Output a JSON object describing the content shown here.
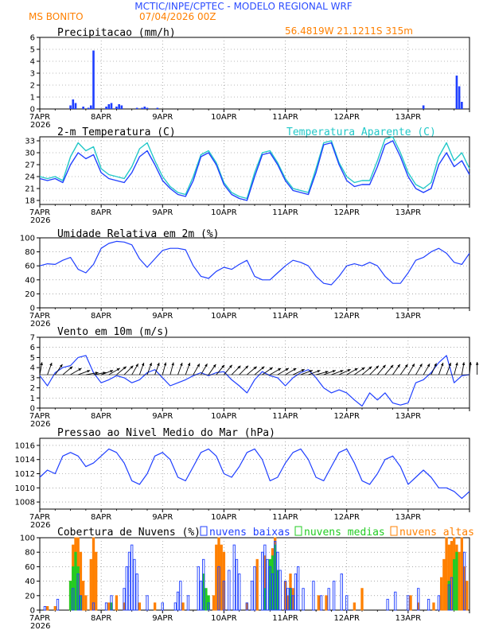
{
  "header": {
    "title": "MCTIC/INPE/CPTEC - MODELO REGIONAL WRF",
    "location": "MS BONITO",
    "run": "07/04/2026 00Z",
    "coords": "56.4819W 21.1211S 315m"
  },
  "colors": {
    "title_blue": "#2b4cff",
    "orange": "#ff8000",
    "blue": "#1f3fff",
    "cyan": "#22c8c8",
    "green": "#22cc22",
    "black": "#000000"
  },
  "x_axis": {
    "ticks": [
      "7APR",
      "8APR",
      "9APR",
      "10APR",
      "11APR",
      "12APR",
      "13APR"
    ],
    "year": "2026"
  },
  "chart_data": [
    {
      "type": "bar",
      "title": "Precipitacao (mm/h)",
      "ylim": [
        0,
        6
      ],
      "yticks": [
        0,
        1,
        2,
        3,
        4,
        5,
        6
      ],
      "x_unit": "hours since 07/04/2026 00Z",
      "series": [
        {
          "x": [
            12,
            13,
            14,
            17,
            19,
            20,
            21,
            26,
            27,
            28,
            30,
            31,
            32,
            38,
            40,
            41,
            42,
            46,
            150,
            163,
            164,
            165
          ],
          "values": [
            0.3,
            0.8,
            0.5,
            0.2,
            0.1,
            0.3,
            4.9,
            0.2,
            0.4,
            0.5,
            0.2,
            0.4,
            0.3,
            0.1,
            0.1,
            0.2,
            0.1,
            0.1,
            0.3,
            2.8,
            1.9,
            0.6
          ]
        }
      ]
    },
    {
      "type": "line",
      "title": "2-m Temperatura (C)",
      "ylim": [
        17,
        34
      ],
      "yticks": [
        18,
        21,
        24,
        27,
        30,
        33
      ],
      "x_unit": "hours since 07/04/2026 00Z",
      "series": [
        {
          "name": "2-m Temperatura (C)",
          "x": [
            0,
            3,
            6,
            9,
            12,
            15,
            18,
            21,
            24,
            27,
            30,
            33,
            36,
            39,
            42,
            45,
            48,
            51,
            54,
            57,
            60,
            63,
            66,
            69,
            72,
            75,
            78,
            81,
            84,
            87,
            90,
            93,
            96,
            99,
            102,
            105,
            108,
            111,
            114,
            117,
            120,
            123,
            126,
            129,
            132,
            135,
            138,
            141,
            144,
            147,
            150,
            153,
            156,
            159,
            162,
            165,
            168
          ],
          "values": [
            23.5,
            23,
            23.5,
            22.5,
            27,
            30,
            28.5,
            29.5,
            25,
            23.5,
            23,
            22.5,
            25,
            29,
            30.5,
            27,
            23,
            21,
            19.5,
            19,
            23,
            29,
            30,
            27,
            22,
            19.5,
            18.5,
            18,
            24,
            29.5,
            30,
            27,
            23,
            20.5,
            20,
            19.5,
            25,
            32,
            32.5,
            27,
            23,
            21.5,
            22,
            22,
            26.5,
            32,
            33,
            29,
            24,
            21,
            20,
            21,
            27,
            30,
            26.5,
            28,
            24.5
          ]
        },
        {
          "name": "Temperatura Aparente (C)",
          "x": [
            0,
            3,
            6,
            9,
            12,
            15,
            18,
            21,
            24,
            27,
            30,
            33,
            36,
            39,
            42,
            45,
            48,
            51,
            54,
            57,
            60,
            63,
            66,
            69,
            72,
            75,
            78,
            81,
            84,
            87,
            90,
            93,
            96,
            99,
            102,
            105,
            108,
            111,
            114,
            117,
            120,
            123,
            126,
            129,
            132,
            135,
            138,
            141,
            144,
            147,
            150,
            153,
            156,
            159,
            162,
            165,
            168
          ],
          "values": [
            24,
            23.5,
            24,
            23,
            29,
            32.5,
            30.5,
            31.5,
            26,
            24.5,
            24,
            23.5,
            26.5,
            31,
            32.5,
            28,
            24,
            21.5,
            20,
            19.5,
            24,
            29.5,
            30.5,
            27.5,
            22.5,
            20,
            19,
            18.5,
            25,
            30,
            30.5,
            27.5,
            23.5,
            21,
            20.5,
            20,
            26,
            32.5,
            33,
            27.5,
            24,
            22.5,
            23,
            23,
            28,
            33.5,
            34,
            30,
            25,
            22,
            21,
            22.5,
            29,
            32.5,
            28,
            30,
            26
          ]
        }
      ]
    },
    {
      "type": "line",
      "title": "Umidade Relativa em 2m (%)",
      "ylim": [
        0,
        100
      ],
      "yticks": [
        0,
        20,
        40,
        60,
        80,
        100
      ],
      "x_unit": "hours since 07/04/2026 00Z",
      "series": [
        {
          "x": [
            0,
            3,
            6,
            9,
            12,
            15,
            18,
            21,
            24,
            27,
            30,
            33,
            36,
            39,
            42,
            45,
            48,
            51,
            54,
            57,
            60,
            63,
            66,
            69,
            72,
            75,
            78,
            81,
            84,
            87,
            90,
            93,
            96,
            99,
            102,
            105,
            108,
            111,
            114,
            117,
            120,
            123,
            126,
            129,
            132,
            135,
            138,
            141,
            144,
            147,
            150,
            153,
            156,
            159,
            162,
            165,
            168
          ],
          "values": [
            60,
            63,
            62,
            68,
            72,
            55,
            50,
            62,
            85,
            92,
            95,
            94,
            90,
            70,
            58,
            70,
            82,
            85,
            85,
            83,
            60,
            45,
            42,
            52,
            58,
            55,
            62,
            68,
            45,
            40,
            40,
            50,
            60,
            68,
            65,
            60,
            45,
            35,
            33,
            45,
            60,
            63,
            60,
            65,
            60,
            45,
            35,
            35,
            50,
            68,
            72,
            80,
            85,
            78,
            65,
            62,
            78
          ]
        }
      ]
    },
    {
      "type": "line",
      "title": "Vento em 10m (m/s)",
      "ylim": [
        0,
        7
      ],
      "yticks": [
        0,
        1,
        2,
        3,
        4,
        5,
        6,
        7
      ],
      "x_unit": "hours since 07/04/2026 00Z",
      "series": [
        {
          "x": [
            0,
            3,
            6,
            9,
            12,
            15,
            18,
            21,
            24,
            27,
            30,
            33,
            36,
            39,
            42,
            45,
            48,
            51,
            54,
            57,
            60,
            63,
            66,
            69,
            72,
            75,
            78,
            81,
            84,
            87,
            90,
            93,
            96,
            99,
            102,
            105,
            108,
            111,
            114,
            117,
            120,
            123,
            126,
            129,
            132,
            135,
            138,
            141,
            144,
            147,
            150,
            153,
            156,
            159,
            162,
            165,
            168
          ],
          "values": [
            3.2,
            2.2,
            3.5,
            4,
            4.2,
            5,
            5.2,
            3.5,
            2.5,
            2.8,
            3.2,
            3,
            2.5,
            2.8,
            3.5,
            3.8,
            3,
            2.2,
            2.5,
            2.8,
            3.2,
            3.5,
            3.2,
            3.5,
            3.6,
            2.8,
            2.2,
            1.5,
            2.8,
            3.6,
            3.2,
            3,
            2.2,
            3,
            3.5,
            3.8,
            3,
            2,
            1.5,
            1.8,
            1.5,
            0.8,
            0.2,
            1.5,
            0.8,
            1.5,
            0.5,
            0.3,
            0.5,
            2.5,
            2.8,
            3.5,
            4.5,
            5.2,
            2.5,
            3.2,
            3.3
          ]
        }
      ]
    },
    {
      "type": "line",
      "title": "Pressao ao Nivel Medio do Mar (hPa)",
      "ylim": [
        1007,
        1017
      ],
      "yticks": [
        1008,
        1010,
        1012,
        1014,
        1016
      ],
      "x_unit": "hours since 07/04/2026 00Z",
      "series": [
        {
          "x": [
            0,
            3,
            6,
            9,
            12,
            15,
            18,
            21,
            24,
            27,
            30,
            33,
            36,
            39,
            42,
            45,
            48,
            51,
            54,
            57,
            60,
            63,
            66,
            69,
            72,
            75,
            78,
            81,
            84,
            87,
            90,
            93,
            96,
            99,
            102,
            105,
            108,
            111,
            114,
            117,
            120,
            123,
            126,
            129,
            132,
            135,
            138,
            141,
            144,
            147,
            150,
            153,
            156,
            159,
            162,
            165,
            168
          ],
          "values": [
            1011.5,
            1012.5,
            1012,
            1014.5,
            1015,
            1014.5,
            1013,
            1013.5,
            1014.5,
            1015.5,
            1015,
            1013.5,
            1011,
            1010.5,
            1012,
            1014.5,
            1015,
            1014,
            1011.5,
            1011,
            1013,
            1015,
            1015.5,
            1014.5,
            1012,
            1011.5,
            1013,
            1015,
            1015.5,
            1014,
            1011,
            1011.5,
            1013.5,
            1015,
            1015.5,
            1014,
            1011.5,
            1011,
            1013,
            1015,
            1015.5,
            1013.5,
            1011,
            1010.5,
            1012,
            1014,
            1014.5,
            1013,
            1010.5,
            1011.5,
            1012.5,
            1011.5,
            1010,
            1010,
            1009.5,
            1008.5,
            1009.5
          ]
        }
      ]
    },
    {
      "type": "bar",
      "title": "Cobertura de Nuvens (%)",
      "ylim": [
        0,
        100
      ],
      "yticks": [
        0,
        20,
        40,
        60,
        80,
        100
      ],
      "x_unit": "hours since 07/04/2026 00Z",
      "series": [
        {
          "name": "nuvens baixas",
          "x": [
            2,
            7,
            13,
            15,
            16,
            21,
            26,
            28,
            33,
            34,
            35,
            36,
            37,
            38,
            42,
            48,
            53,
            54,
            55,
            58,
            62,
            63,
            64,
            66,
            70,
            72,
            74,
            76,
            77,
            78,
            81,
            83,
            84,
            87,
            88,
            89,
            90,
            91,
            92,
            93,
            94,
            96,
            97,
            98,
            99,
            100,
            101,
            103,
            107,
            110,
            113,
            115,
            118,
            120,
            136,
            139,
            144,
            148,
            152,
            156,
            160,
            161,
            166
          ],
          "values": [
            5,
            15,
            30,
            50,
            20,
            10,
            10,
            20,
            30,
            60,
            80,
            90,
            70,
            50,
            20,
            10,
            10,
            25,
            40,
            20,
            60,
            40,
            70,
            10,
            60,
            40,
            55,
            90,
            70,
            50,
            10,
            40,
            60,
            80,
            90,
            70,
            60,
            50,
            95,
            80,
            55,
            40,
            30,
            30,
            20,
            50,
            60,
            30,
            40,
            20,
            30,
            40,
            50,
            20,
            15,
            25,
            20,
            30,
            15,
            20,
            35,
            45,
            80
          ]
        },
        {
          "name": "nuvens medias",
          "x": [
            12,
            13,
            14,
            15,
            16,
            28,
            64,
            65,
            66,
            88,
            90,
            91,
            92,
            93,
            98,
            160,
            162,
            163
          ],
          "values": [
            40,
            60,
            80,
            60,
            20,
            10,
            50,
            30,
            20,
            30,
            70,
            75,
            90,
            55,
            30,
            40,
            70,
            80
          ]
        },
        {
          "name": "nuvens altas",
          "x": [
            3,
            6,
            12,
            13,
            14,
            15,
            16,
            17,
            18,
            20,
            21,
            22,
            27,
            30,
            33,
            39,
            45,
            56,
            68,
            69,
            70,
            71,
            72,
            81,
            85,
            88,
            91,
            92,
            96,
            97,
            98,
            99,
            109,
            112,
            123,
            126,
            145,
            148,
            154,
            157,
            158,
            159,
            160,
            161,
            162,
            163,
            164,
            165,
            166,
            167
          ],
          "values": [
            5,
            5,
            40,
            90,
            100,
            100,
            80,
            40,
            20,
            70,
            100,
            80,
            10,
            20,
            10,
            10,
            10,
            10,
            20,
            90,
            100,
            90,
            80,
            10,
            70,
            75,
            85,
            100,
            40,
            20,
            50,
            30,
            20,
            20,
            10,
            30,
            20,
            10,
            10,
            45,
            70,
            100,
            90,
            95,
            100,
            90,
            80,
            100,
            60,
            40
          ]
        }
      ]
    }
  ],
  "wind_vectors": {
    "note_units": "direction in degrees meteorological",
    "dirs": [
      190,
      200,
      215,
      230,
      240,
      250,
      260,
      260,
      250,
      240,
      230,
      225,
      210,
      200,
      200,
      200,
      195,
      195,
      200,
      200,
      210,
      210,
      215,
      220,
      220,
      225,
      225,
      230,
      230,
      235,
      240,
      240,
      240,
      245,
      250,
      250,
      255,
      250,
      250,
      245,
      240,
      235,
      230,
      225,
      220,
      220,
      215,
      215,
      210,
      210,
      210,
      205,
      200,
      200,
      195,
      190,
      185,
      180
    ]
  }
}
